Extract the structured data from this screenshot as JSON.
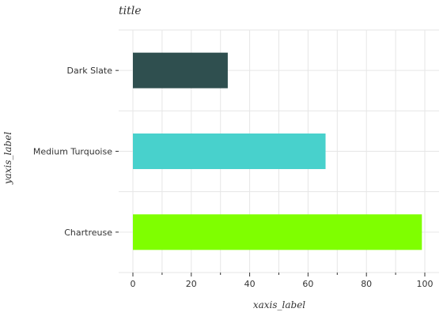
{
  "chart_data": {
    "type": "bar",
    "orientation": "horizontal",
    "title": "title",
    "xlabel": "xaxis_label",
    "ylabel": "yaxis_label",
    "categories": [
      "Dark Slate",
      "Medium Turquoise",
      "Chartreuse"
    ],
    "values": [
      32.5,
      66,
      99
    ],
    "colors": [
      "#2f4f4f",
      "#48d1cc",
      "#7fff00"
    ],
    "xlim": [
      0,
      100
    ],
    "xticks": [
      0,
      20,
      40,
      60,
      80,
      100
    ],
    "grid": true
  }
}
